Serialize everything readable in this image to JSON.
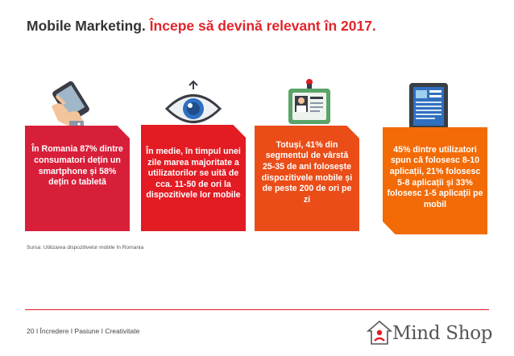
{
  "title": {
    "part1": "Mobile Marketing.",
    "part2": "Începe să devină relevant în 2017."
  },
  "cards": [
    {
      "text": "În Romania 87% dintre consumatori dețin un smartphone și 58% dețin o tabletă"
    },
    {
      "text": "În medie, în timpul unei zile marea majoritate a utilizatorilor se uită de cca. 11-50 de ori la dispozitivele lor mobile"
    },
    {
      "text": "Totuși, 41% din segmentul de vârstă 25-35 de ani folosește dispozitivele mobile și de peste 200 de ori pe zi"
    },
    {
      "text": "45% dintre utilizatori spun că folosesc 8-10 aplicații, 21% folosesc 5-8 aplicații și 33% folosesc 1-5 aplicații pe mobil"
    }
  ],
  "icons": [
    "hand-phone-icon",
    "eye-icon",
    "id-badge-icon",
    "tablet-icon"
  ],
  "source": "Sursa: Utilizarea dispozitivelor mobile în Romania",
  "footer": "20 I Încredere I Pasiune I Creativitate",
  "logo": {
    "name": "Mind Shop"
  },
  "colors": {
    "accent": "#e31b23",
    "card1": "#d81f3a",
    "card2": "#e31b23",
    "card3": "#ea4d18",
    "card4": "#f36b06"
  }
}
